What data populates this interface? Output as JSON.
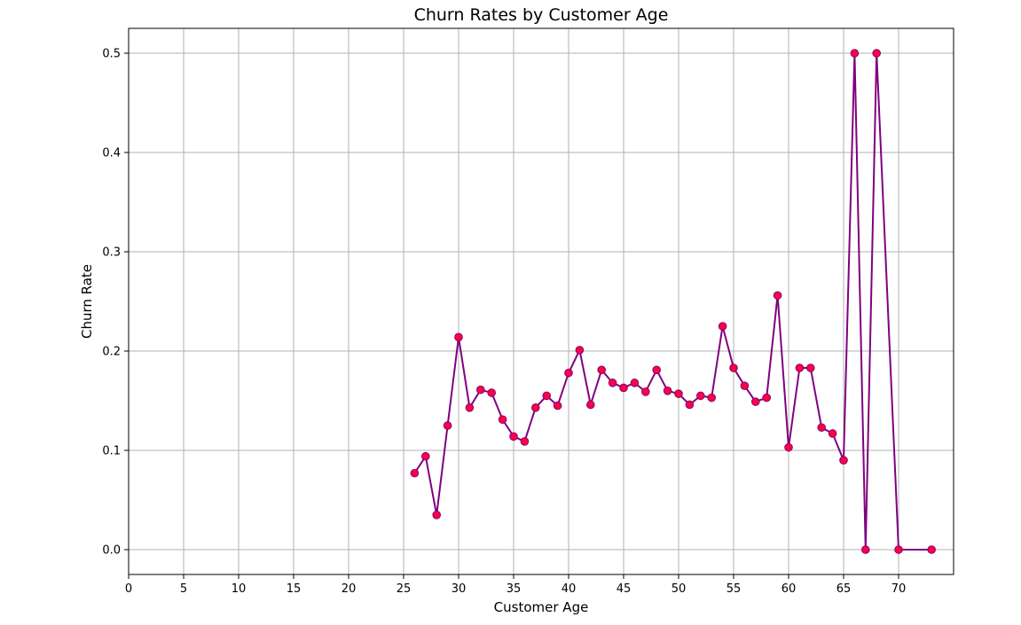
{
  "chart_data": {
    "type": "line",
    "title": "Churn Rates by Customer Age",
    "xlabel": "Customer Age",
    "ylabel": "Churn Rate",
    "xlim": [
      0,
      75
    ],
    "ylim": [
      -0.025,
      0.525
    ],
    "x_ticks": [
      0,
      5,
      10,
      15,
      20,
      25,
      30,
      35,
      40,
      45,
      50,
      55,
      60,
      65,
      70
    ],
    "y_ticks": [
      0.0,
      0.1,
      0.2,
      0.3,
      0.4,
      0.5
    ],
    "x_tick_labels": [
      "0",
      "5",
      "10",
      "15",
      "20",
      "25",
      "30",
      "35",
      "40",
      "45",
      "50",
      "55",
      "60",
      "65",
      "70"
    ],
    "y_tick_labels": [
      "0.0",
      "0.1",
      "0.2",
      "0.3",
      "0.4",
      "0.5"
    ],
    "grid": true,
    "legend": "none",
    "series": [
      {
        "line_color": "#800080",
        "marker_color": "#ff0040",
        "marker_edge_color": "#800080",
        "x": [
          26,
          27,
          28,
          29,
          30,
          31,
          32,
          33,
          34,
          35,
          36,
          37,
          38,
          39,
          40,
          41,
          42,
          43,
          44,
          45,
          46,
          47,
          48,
          49,
          50,
          51,
          52,
          53,
          54,
          55,
          56,
          57,
          58,
          59,
          60,
          61,
          62,
          63,
          64,
          65,
          66,
          67,
          68,
          70,
          73
        ],
        "y": [
          0.077,
          0.094,
          0.035,
          0.125,
          0.214,
          0.143,
          0.161,
          0.158,
          0.131,
          0.114,
          0.109,
          0.143,
          0.155,
          0.145,
          0.178,
          0.201,
          0.146,
          0.181,
          0.168,
          0.163,
          0.168,
          0.159,
          0.181,
          0.16,
          0.157,
          0.146,
          0.155,
          0.153,
          0.225,
          0.183,
          0.165,
          0.149,
          0.153,
          0.256,
          0.103,
          0.183,
          0.183,
          0.123,
          0.117,
          0.09,
          0.5,
          0.0,
          0.5,
          0.0,
          0.0
        ]
      }
    ]
  }
}
